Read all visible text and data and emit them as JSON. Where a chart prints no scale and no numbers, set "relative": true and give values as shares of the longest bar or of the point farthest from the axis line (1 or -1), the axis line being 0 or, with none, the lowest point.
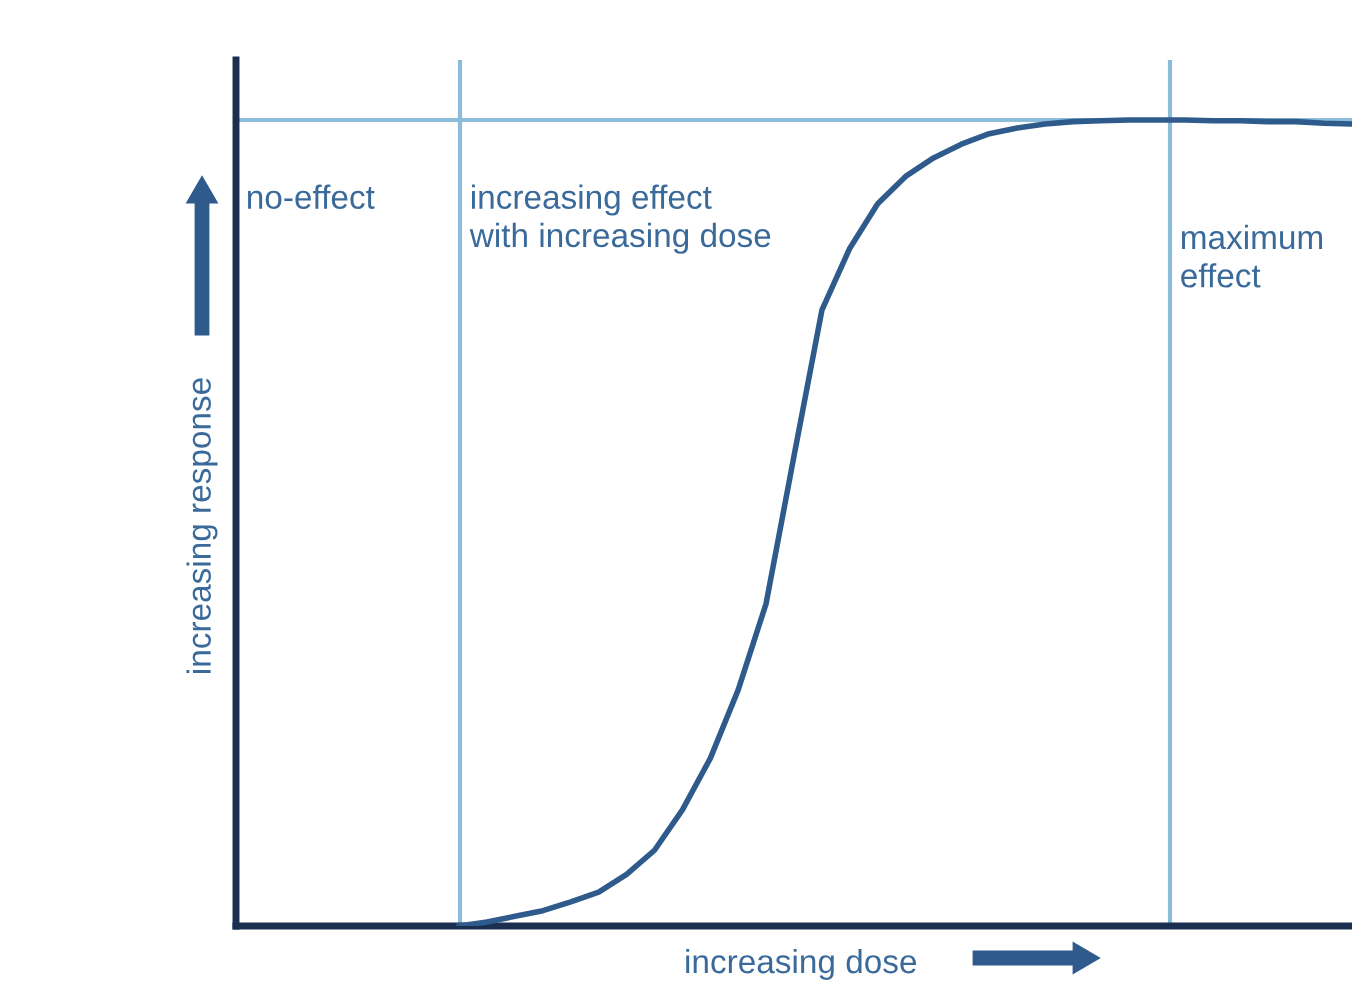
{
  "chart_data": {
    "type": "line",
    "relative": true,
    "xlabel": "increasing dose",
    "ylabel": "increasing response",
    "categories": [
      null,
      null,
      null,
      null,
      null,
      null,
      null,
      null,
      null,
      null,
      null,
      null,
      null,
      null,
      null,
      null,
      null,
      null,
      null,
      null,
      null,
      null,
      null,
      null,
      null,
      null,
      null,
      null,
      null,
      null,
      null,
      null,
      null,
      null,
      null,
      null,
      null,
      null,
      null,
      null,
      null
    ],
    "series": [
      {
        "color": "#2f5b8c",
        "values": [
          null,
          null,
          null,
          null,
          null,
          null,
          null,
          null,
          0,
          0.005,
          0.012,
          0.019,
          0.03,
          0.042,
          0.064,
          0.094,
          0.144,
          0.208,
          0.293,
          0.4,
          0.583,
          0.764,
          0.841,
          0.896,
          0.93,
          0.953,
          0.97,
          0.983,
          0.99,
          0.995,
          0.998,
          0.999,
          1,
          1,
          1,
          0.999,
          0.999,
          0.998,
          0.998,
          0.996,
          0.995
        ]
      }
    ],
    "annotations": [
      "no-effect",
      "increasing effect\nwith increasing dose",
      "maximum\neffect"
    ],
    "grid": false,
    "legend": false,
    "marker": "none",
    "line_style": "solid"
  }
}
